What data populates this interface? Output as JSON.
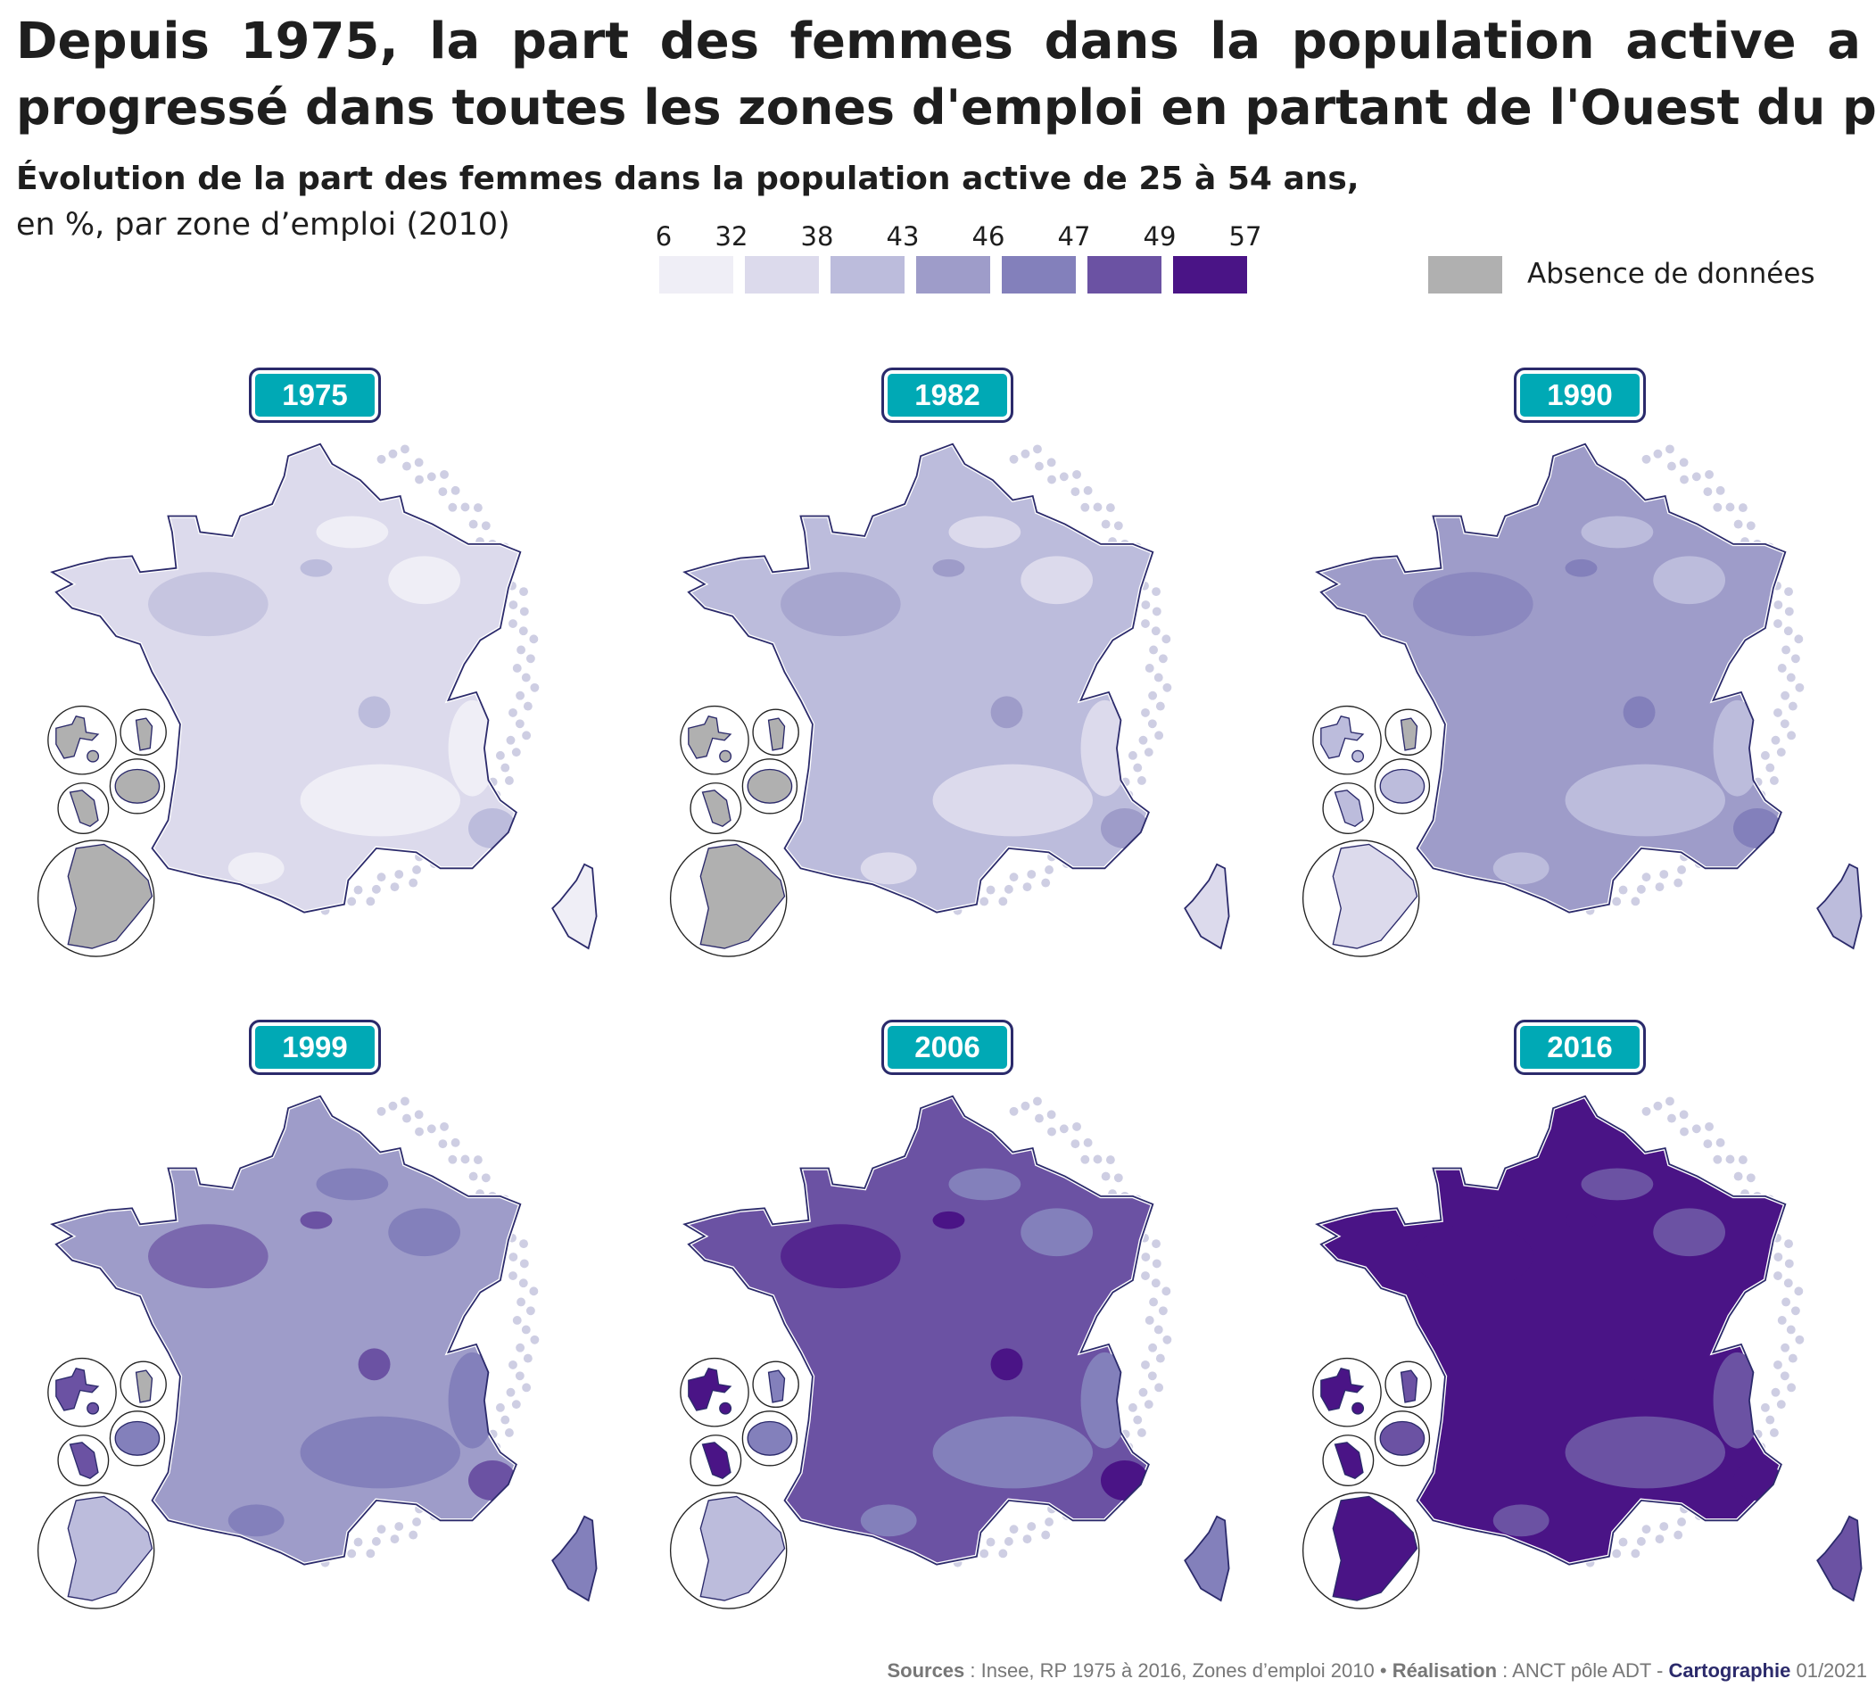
{
  "title": {
    "line1": "Depuis 1975, la part des femmes dans la population active a",
    "line2": "progressé dans toutes les zones d'emploi en partant de l'Ouest du pays"
  },
  "subtitle": {
    "bold": "Évolution de la part des femmes dans la population active de 25 à 54 ans,",
    "normal": "en %, par zone d’emploi (2010)"
  },
  "legend": {
    "breaks": [
      "6",
      "32",
      "38",
      "43",
      "46",
      "47",
      "49",
      "57"
    ],
    "colors": [
      "#efeef6",
      "#dcdaec",
      "#bcbcdc",
      "#9e9cc9",
      "#8380bb",
      "#6b52a3",
      "#4a1486"
    ],
    "no_data_label": "Absence de données",
    "no_data_color": "#b0b0b0"
  },
  "maps": [
    {
      "year": "1975",
      "main": "#dcdaec",
      "patch": "#efeef6",
      "accent": "#bcbcdc",
      "dom": "#b0b0b0",
      "guyane": "#b0b0b0"
    },
    {
      "year": "1982",
      "main": "#bcbcdc",
      "patch": "#dcdaec",
      "accent": "#9e9cc9",
      "dom": "#b0b0b0",
      "guyane": "#b0b0b0"
    },
    {
      "year": "1990",
      "main": "#9e9cc9",
      "patch": "#bcbcdc",
      "accent": "#8380bb",
      "dom": "#bcbcdc",
      "guyane": "#dcdaec"
    },
    {
      "year": "1999",
      "main": "#9e9cc9",
      "patch": "#8380bb",
      "accent": "#6b52a3",
      "dom": "#6b52a3",
      "guyane": "#bcbcdc"
    },
    {
      "year": "2006",
      "main": "#6b52a3",
      "patch": "#8380bb",
      "accent": "#4a1486",
      "dom": "#4a1486",
      "guyane": "#bcbcdc"
    },
    {
      "year": "2016",
      "main": "#4a1486",
      "patch": "#6b52a3",
      "accent": "#4a1486",
      "dom": "#4a1486",
      "guyane": "#4a1486"
    }
  ],
  "footer": {
    "sources_label": "Sources",
    "sources_text": " : Insee, RP 1975 à 2016, Zones d’emploi 2010 • ",
    "realisation_label": "Réalisation",
    "realisation_text": " : ANCT pôle ADT - ",
    "carto_label": "Cartographie",
    "date": " 01/2021"
  }
}
